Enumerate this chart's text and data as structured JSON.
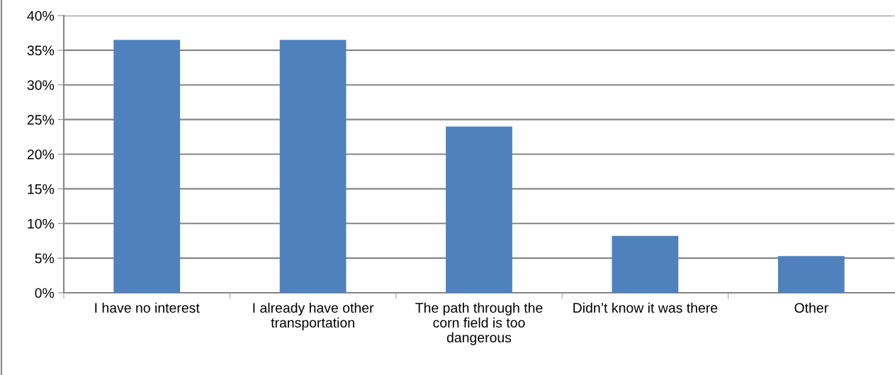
{
  "chart_data": {
    "type": "bar",
    "categories": [
      "I have no interest",
      "I already have other transportation",
      "The path through the corn field is too dangerous",
      "Didn’t know it was there",
      "Other"
    ],
    "values": [
      36.5,
      36.5,
      24.0,
      8.2,
      5.3
    ],
    "color": "#4f81bd",
    "ylim": [
      0,
      40
    ],
    "yticks": [
      {
        "value": 0,
        "label": "0%"
      },
      {
        "value": 5,
        "label": "5%"
      },
      {
        "value": 10,
        "label": "10%"
      },
      {
        "value": 15,
        "label": "15%"
      },
      {
        "value": 20,
        "label": "20%"
      },
      {
        "value": 25,
        "label": "25%"
      },
      {
        "value": 30,
        "label": "30%"
      },
      {
        "value": 35,
        "label": "35%"
      },
      {
        "value": 40,
        "label": "40%"
      }
    ],
    "grid": "y",
    "legend": false
  }
}
